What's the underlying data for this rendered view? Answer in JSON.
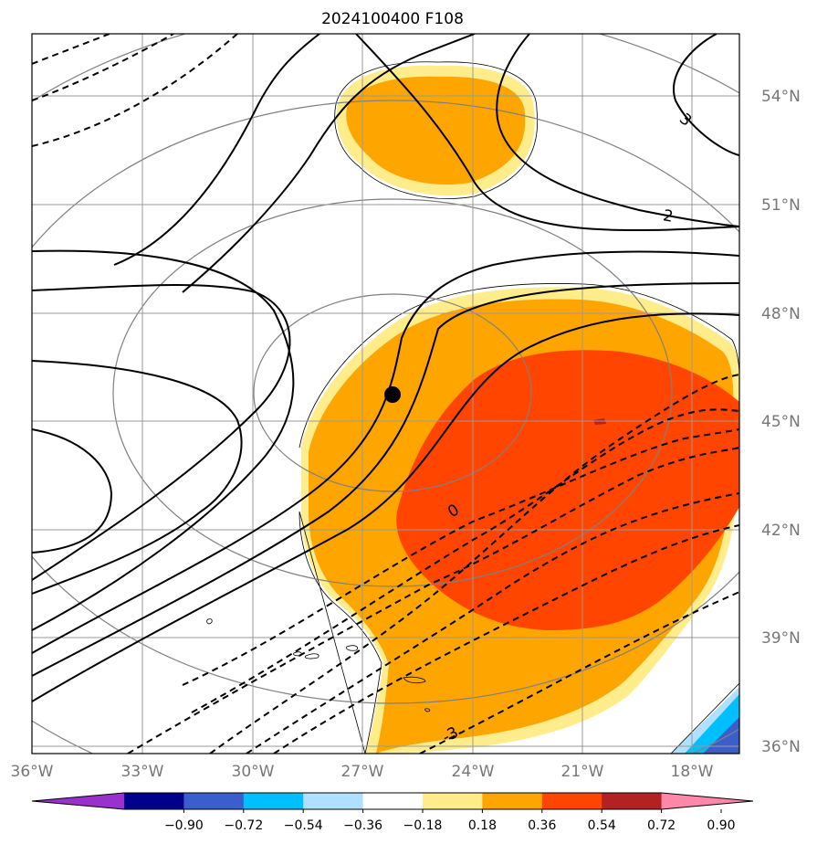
{
  "title": "2024100400 F108",
  "lat_labels": [
    "54°N",
    "51°N",
    "48°N",
    "45°N",
    "42°N",
    "39°N",
    "36°N"
  ],
  "lon_labels": [
    "36°W",
    "33°W",
    "30°W",
    "27°W",
    "24°W",
    "21°W",
    "18°W"
  ],
  "colorbar": {
    "ticks": [
      "−0.90",
      "−0.72",
      "−0.54",
      "−0.36",
      "−0.18",
      "0.18",
      "0.36",
      "0.54",
      "0.72",
      "0.90"
    ],
    "colors": [
      "#9932cc",
      "#00008b",
      "#3a5fcd",
      "#00bfff",
      "#b0e0ff",
      "#ffffff",
      "#ffec8b",
      "#ffa500",
      "#ff4500",
      "#b22222",
      "#ff88aa"
    ]
  },
  "contour_labels": [
    "3",
    "2",
    "0",
    "-3"
  ],
  "marker": "black-dot",
  "colors": {
    "line": "#000000",
    "grid": "#999999",
    "circle": "#808080",
    "light_yellow": "#ffec8b",
    "orange": "#ffa500",
    "red_orange": "#ff4500",
    "blue": "#3a5fcd",
    "cyan": "#00bfff",
    "pale_blue": "#b0e0ff"
  }
}
